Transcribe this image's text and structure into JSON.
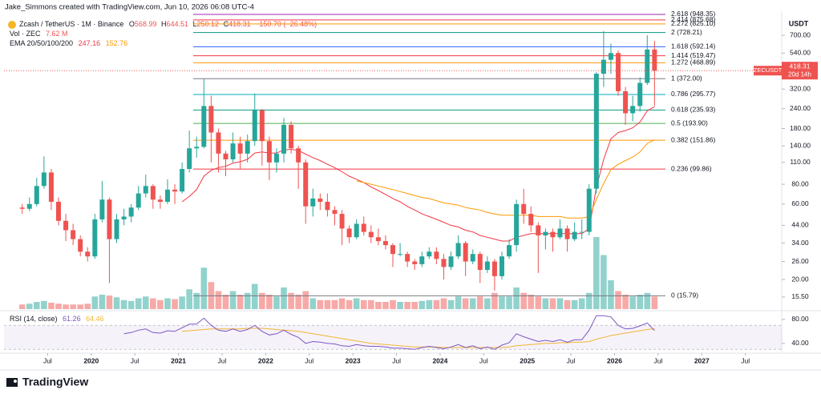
{
  "header": {
    "credit": "Jake_Simmons created with TradingView.com, Jun 10, 2026 06:08 UTC-4",
    "symbol": "Zcash / TetherUS · 1M · Binance",
    "ohlc_letters": [
      "O",
      "H",
      "L",
      "C"
    ],
    "change": "−150.70 (−26.48%)",
    "volume_title": "Vol · ZEC",
    "volume_label": "7.62 M",
    "ema_title": "EMA 20/50/100/200",
    "rsi_title": "RSI (14, close)",
    "currency": "USDT",
    "ticker": "ZECUSDT",
    "countdown": "20d 14h",
    "brand": "TradingView"
  },
  "chart_data": {
    "type": "candlestick",
    "log": true,
    "up_color": "#26a69a",
    "down_color": "#ef5350",
    "x": [
      "2019-03",
      "2019-04",
      "2019-05",
      "2019-06",
      "2019-07",
      "2019-08",
      "2019-09",
      "2019-10",
      "2019-11",
      "2019-12",
      "2020-01",
      "2020-02",
      "2020-03",
      "2020-04",
      "2020-05",
      "2020-06",
      "2020-07",
      "2020-08",
      "2020-09",
      "2020-10",
      "2020-11",
      "2020-12",
      "2021-01",
      "2021-02",
      "2021-03",
      "2021-04",
      "2021-05",
      "2021-06",
      "2021-07",
      "2021-08",
      "2021-09",
      "2021-10",
      "2021-11",
      "2021-12",
      "2022-01",
      "2022-02",
      "2022-03",
      "2022-04",
      "2022-05",
      "2022-06",
      "2022-07",
      "2022-08",
      "2022-09",
      "2022-10",
      "2022-11",
      "2022-12",
      "2023-01",
      "2023-02",
      "2023-03",
      "2023-04",
      "2023-05",
      "2023-06",
      "2023-07",
      "2023-08",
      "2023-09",
      "2023-10",
      "2023-11",
      "2023-12",
      "2024-01",
      "2024-02",
      "2024-03",
      "2024-04",
      "2024-05",
      "2024-06",
      "2024-07",
      "2024-08",
      "2024-09",
      "2024-10",
      "2024-11",
      "2024-12",
      "2025-01",
      "2025-02",
      "2025-03",
      "2025-04",
      "2025-05",
      "2025-06",
      "2025-07",
      "2025-08",
      "2025-09",
      "2025-10",
      "2025-11",
      "2025-12",
      "2026-01",
      "2026-02",
      "2026-03",
      "2026-04",
      "2026-05",
      "2026-06"
    ],
    "open": [
      57,
      56,
      60,
      78,
      95,
      62,
      47,
      41,
      36,
      30,
      28,
      48,
      64,
      36,
      48,
      50,
      57,
      70,
      78,
      64,
      62,
      74,
      72,
      100,
      135,
      138,
      250,
      170,
      125,
      115,
      145,
      125,
      150,
      235,
      150,
      110,
      125,
      190,
      135,
      110,
      58,
      65,
      62,
      55,
      52,
      42,
      37,
      45,
      40,
      37,
      35,
      33,
      29,
      29,
      26,
      25,
      28,
      30,
      27,
      24,
      28,
      34,
      26,
      29,
      23,
      26,
      21,
      28,
      33,
      60,
      52,
      44,
      38,
      40,
      37,
      42,
      36,
      40,
      40,
      75,
      400,
      490,
      540,
      310,
      225,
      250,
      350,
      568.99
    ],
    "high": [
      60,
      66,
      88,
      120,
      100,
      66,
      52,
      45,
      38,
      32,
      52,
      84,
      66,
      52,
      56,
      60,
      78,
      92,
      80,
      68,
      86,
      80,
      110,
      175,
      160,
      370,
      290,
      180,
      130,
      170,
      160,
      165,
      300,
      240,
      160,
      135,
      210,
      200,
      140,
      115,
      75,
      70,
      70,
      58,
      55,
      44,
      48,
      50,
      44,
      42,
      38,
      34,
      34,
      30,
      27,
      30,
      32,
      32,
      29,
      30,
      38,
      35,
      31,
      30,
      28,
      27,
      30,
      36,
      64,
      75,
      58,
      46,
      42,
      42,
      48,
      44,
      46,
      48,
      80,
      410,
      745,
      620,
      560,
      330,
      290,
      380,
      700,
      644.51
    ],
    "low": [
      52,
      54,
      58,
      75,
      55,
      44,
      35,
      33,
      28,
      26,
      27,
      46,
      19,
      34,
      44,
      46,
      55,
      66,
      56,
      56,
      60,
      60,
      70,
      95,
      118,
      135,
      110,
      95,
      90,
      110,
      100,
      110,
      140,
      105,
      85,
      95,
      110,
      125,
      75,
      45,
      50,
      55,
      50,
      44,
      33,
      34,
      36,
      38,
      34,
      33,
      31,
      24,
      28,
      24,
      23,
      24,
      27,
      25,
      20,
      23,
      27,
      21,
      25,
      19,
      22,
      17,
      20,
      27,
      30,
      45,
      40,
      22,
      31,
      30,
      36,
      30,
      35,
      36,
      38,
      70,
      330,
      400,
      290,
      190,
      200,
      230,
      340,
      250.12
    ],
    "close": [
      56,
      60,
      78,
      95,
      62,
      47,
      41,
      36,
      30,
      28,
      48,
      64,
      36,
      48,
      50,
      57,
      70,
      78,
      64,
      62,
      74,
      72,
      100,
      135,
      138,
      250,
      170,
      125,
      115,
      145,
      125,
      150,
      235,
      150,
      110,
      125,
      190,
      135,
      110,
      58,
      65,
      62,
      55,
      52,
      42,
      37,
      45,
      40,
      37,
      35,
      33,
      29,
      29,
      26,
      25,
      28,
      30,
      27,
      24,
      28,
      34,
      26,
      29,
      23,
      26,
      21,
      28,
      33,
      60,
      52,
      44,
      38,
      40,
      37,
      42,
      36,
      40,
      40,
      75,
      400,
      490,
      540,
      310,
      225,
      250,
      350,
      568.99,
      418.31
    ],
    "volume": [
      2.8,
      3.3,
      4.4,
      5,
      3.9,
      3.3,
      2.8,
      2.8,
      2.8,
      3.3,
      7.7,
      8.8,
      8.3,
      7.2,
      5.5,
      5,
      6.6,
      7.7,
      6.6,
      5.5,
      6.6,
      6.1,
      7.7,
      12.1,
      9.9,
      25.3,
      16.5,
      11,
      8.8,
      11,
      8.8,
      9.9,
      15.4,
      9.9,
      8.8,
      7.7,
      13.2,
      9.9,
      8.8,
      11,
      6.6,
      5.5,
      5.5,
      5.5,
      6.6,
      5.5,
      6.6,
      5.5,
      5.5,
      4.4,
      4.4,
      5.5,
      4.4,
      4.4,
      4.4,
      5,
      5.5,
      5.5,
      6.6,
      5.5,
      7.7,
      6.6,
      6.6,
      7.7,
      6.6,
      9.9,
      7.7,
      7.7,
      13.2,
      9.9,
      8.8,
      7.7,
      6.6,
      6.6,
      6.6,
      5.5,
      5.5,
      6.6,
      9.9,
      44,
      33,
      17.6,
      11,
      8.8,
      7.7,
      8.8,
      9.9,
      7.62
    ],
    "ema": [
      {
        "color": "#f23645",
        "values": [
          null,
          null,
          null,
          null,
          null,
          null,
          null,
          null,
          null,
          null,
          null,
          null,
          null,
          null,
          null,
          null,
          null,
          null,
          null,
          null,
          null,
          null,
          62,
          67,
          74,
          90,
          98,
          102,
          104,
          109,
          111,
          115,
          126,
          128,
          126,
          126,
          132,
          133,
          131,
          124,
          118,
          113,
          107,
          102,
          96,
          90,
          86,
          82,
          77,
          73,
          69,
          65,
          62,
          58,
          55,
          52,
          50,
          48,
          46,
          44,
          43,
          41,
          40,
          38,
          37,
          36,
          35,
          35,
          37,
          38,
          39,
          39,
          39,
          39,
          39,
          39,
          39,
          39,
          42,
          76,
          115,
          155,
          170,
          175,
          182,
          198,
          233,
          247.16
        ]
      },
      {
        "color": "#ff9800",
        "values": [
          null,
          null,
          null,
          null,
          null,
          null,
          null,
          null,
          null,
          null,
          null,
          null,
          null,
          null,
          null,
          null,
          null,
          null,
          null,
          null,
          null,
          null,
          null,
          null,
          null,
          null,
          null,
          null,
          null,
          null,
          null,
          null,
          null,
          null,
          null,
          null,
          null,
          null,
          null,
          null,
          null,
          null,
          null,
          null,
          null,
          null,
          84,
          82,
          80,
          78,
          76,
          74,
          72,
          70,
          68,
          66,
          65,
          63,
          61,
          60,
          59,
          57,
          56,
          55,
          53,
          52,
          51,
          51,
          51,
          51,
          51,
          50,
          50,
          50,
          50,
          49,
          49,
          49,
          50,
          64,
          81,
          99,
          107,
          113,
          119,
          128,
          145,
          152.76
        ]
      }
    ],
    "xlim": [
      "2019-01",
      "2027-12"
    ],
    "ylim": [
      13,
      982
    ],
    "yticks": [
      {
        "value": 700,
        "label": "700.00"
      },
      {
        "value": 540,
        "label": "540.00"
      },
      {
        "value": 320,
        "label": "320.00"
      },
      {
        "value": 240,
        "label": "240.00"
      },
      {
        "value": 180,
        "label": "180.00"
      },
      {
        "value": 140,
        "label": "140.00"
      },
      {
        "value": 110,
        "label": "110.00"
      },
      {
        "value": 80,
        "label": "80.00"
      },
      {
        "value": 60,
        "label": "60.00"
      },
      {
        "value": 44,
        "label": "44.00"
      },
      {
        "value": 34,
        "label": "34.00"
      },
      {
        "value": 26,
        "label": "26.00"
      },
      {
        "value": 20,
        "label": "20.00"
      },
      {
        "value": 15.5,
        "label": "15.50"
      }
    ],
    "xticks": [
      {
        "value": "2019-07",
        "label": "Jul"
      },
      {
        "value": "2020-01",
        "label": "2020"
      },
      {
        "value": "2020-07",
        "label": "Jul"
      },
      {
        "value": "2021-01",
        "label": "2021"
      },
      {
        "value": "2021-07",
        "label": "Jul"
      },
      {
        "value": "2022-01",
        "label": "2022"
      },
      {
        "value": "2022-07",
        "label": "Jul"
      },
      {
        "value": "2023-01",
        "label": "2023"
      },
      {
        "value": "2023-07",
        "label": "Jul"
      },
      {
        "value": "2024-01",
        "label": "2024"
      },
      {
        "value": "2024-07",
        "label": "Jul"
      },
      {
        "value": "2025-01",
        "label": "2025"
      },
      {
        "value": "2025-07",
        "label": "Jul"
      },
      {
        "value": "2026-01",
        "label": "2026"
      },
      {
        "value": "2026-07",
        "label": "Jul"
      },
      {
        "value": "2027-01",
        "label": "2027"
      },
      {
        "value": "2027-07",
        "label": "Jul"
      }
    ],
    "fib": [
      {
        "value": 15.79,
        "label": "0 (15.79)",
        "color": "#787b86"
      },
      {
        "value": 99.86,
        "label": "0.236 (99.86)",
        "color": "#f23645"
      },
      {
        "value": 151.86,
        "label": "0.382 (151.86)",
        "color": "#ff9800"
      },
      {
        "value": 193.9,
        "label": "0.5 (193.90)",
        "color": "#4caf50"
      },
      {
        "value": 235.93,
        "label": "0.618 (235.93)",
        "color": "#089981"
      },
      {
        "value": 295.77,
        "label": "0.786 (295.77)",
        "color": "#00acc1"
      },
      {
        "value": 372,
        "label": "1 (372.00)",
        "color": "#787b86"
      },
      {
        "value": 468.89,
        "label": "1.272 (468.89)",
        "color": "#ff9800"
      },
      {
        "value": 519.47,
        "label": "1.414 (519.47)",
        "color": "#f23645"
      },
      {
        "value": 592.14,
        "label": "1.618 (592.14)",
        "color": "#2962ff"
      },
      {
        "value": 728.21,
        "label": "2 (728.21)",
        "color": "#089981"
      },
      {
        "value": 825.1,
        "label": "2.272 (825.10)",
        "color": "#ff9800"
      },
      {
        "value": 875.68,
        "label": "2.414 (875.68)",
        "color": "#f23645"
      },
      {
        "value": 948.35,
        "label": "2.618 (948.35)",
        "color": "#9c27b0"
      }
    ],
    "rsi": {
      "color": "#7e57c2",
      "ma_color": "#f2b632",
      "ylim": [
        25,
        89
      ],
      "band": [
        30,
        70
      ],
      "yticks": [
        {
          "value": 80,
          "label": "80.00"
        },
        {
          "value": 40,
          "label": "40.00"
        }
      ],
      "values": [
        null,
        null,
        null,
        null,
        null,
        null,
        null,
        null,
        null,
        null,
        null,
        null,
        null,
        null,
        56,
        58,
        62,
        64,
        58,
        57,
        61,
        60,
        66,
        72,
        72,
        82,
        70,
        62,
        60,
        64,
        60,
        63,
        70,
        60,
        54,
        56,
        62,
        55,
        50,
        40,
        43,
        42,
        40,
        39,
        36,
        35,
        38,
        36,
        35,
        35,
        34,
        32,
        32,
        31,
        30,
        33,
        35,
        33,
        31,
        34,
        38,
        33,
        36,
        31,
        34,
        30,
        37,
        41,
        56,
        51,
        47,
        43,
        45,
        43,
        46,
        42,
        46,
        46,
        62,
        86,
        86,
        84,
        70,
        64,
        65,
        69,
        74,
        61.26
      ],
      "ma": [
        null,
        null,
        null,
        null,
        null,
        null,
        null,
        null,
        null,
        null,
        null,
        null,
        null,
        null,
        null,
        null,
        null,
        null,
        null,
        null,
        null,
        null,
        60,
        61,
        62,
        63,
        64,
        64,
        64,
        64,
        64,
        65,
        65,
        65,
        64,
        63,
        62,
        61,
        60,
        58,
        56,
        54,
        52,
        50,
        48,
        46,
        44,
        42,
        40,
        39,
        38,
        37,
        36,
        35,
        34,
        34,
        34,
        34,
        33,
        33,
        33,
        33,
        33,
        33,
        33,
        33,
        33,
        34,
        36,
        37,
        38,
        39,
        40,
        40,
        41,
        41,
        42,
        42,
        43,
        47,
        50,
        53,
        55,
        57,
        59,
        61,
        63,
        64.46
      ]
    }
  }
}
